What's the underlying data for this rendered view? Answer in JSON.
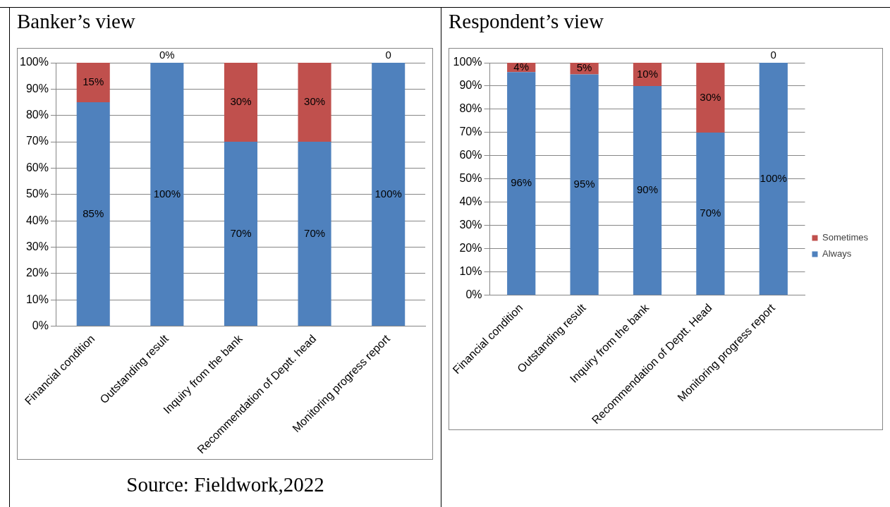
{
  "chart_data": [
    {
      "type": "bar",
      "title": "Banker’s view",
      "categories": [
        "Financial condition",
        "Outstanding result",
        "Inquiry from the bank",
        "Recommendation of Deptt. head",
        "Monitoring progress report"
      ],
      "stacked": true,
      "ylim": [
        0,
        100
      ],
      "yticks": [
        {
          "value": 0,
          "label": "0%"
        },
        {
          "value": 10,
          "label": "10%"
        },
        {
          "value": 20,
          "label": "20%"
        },
        {
          "value": 30,
          "label": "30%"
        },
        {
          "value": 40,
          "label": "40%"
        },
        {
          "value": 50,
          "label": "50%"
        },
        {
          "value": 60,
          "label": "60%"
        },
        {
          "value": 70,
          "label": "70%"
        },
        {
          "value": 80,
          "label": "80%"
        },
        {
          "value": 90,
          "label": "90%"
        },
        {
          "value": 100,
          "label": "100%"
        }
      ],
      "grid": "y",
      "legend": false,
      "annotations": [
        "Source: Fieldwork,2022"
      ],
      "series": [
        {
          "color": "#4f81bd",
          "values": [
            85,
            100,
            70,
            70,
            100
          ],
          "value_labels": [
            "85%",
            "100%",
            "70%",
            "70%",
            "100%"
          ]
        },
        {
          "color": "#c0504d",
          "values": [
            15,
            0,
            30,
            30,
            0
          ],
          "value_labels": [
            "15%",
            "0%",
            "30%",
            "30%",
            "0"
          ]
        }
      ]
    },
    {
      "type": "bar",
      "title": "Respondent’s view",
      "categories": [
        "Financial condition",
        "Outstanding result",
        "Inquiry from the bank",
        "Recommendation of Deptt. Head",
        "Monitoring progress report"
      ],
      "stacked": true,
      "ylim": [
        0,
        100
      ],
      "yticks": [
        {
          "value": 0,
          "label": "0%"
        },
        {
          "value": 10,
          "label": "10%"
        },
        {
          "value": 20,
          "label": "20%"
        },
        {
          "value": 30,
          "label": "30%"
        },
        {
          "value": 40,
          "label": "40%"
        },
        {
          "value": 50,
          "label": "50%"
        },
        {
          "value": 60,
          "label": "60%"
        },
        {
          "value": 70,
          "label": "70%"
        },
        {
          "value": 80,
          "label": "80%"
        },
        {
          "value": 90,
          "label": "90%"
        },
        {
          "value": 100,
          "label": "100%"
        }
      ],
      "grid": "y",
      "legend": "right",
      "series": [
        {
          "name": "Always",
          "color": "#4f81bd",
          "values": [
            96,
            95,
            90,
            70,
            100
          ],
          "value_labels": [
            "96%",
            "95%",
            "90%",
            "70%",
            "100%"
          ]
        },
        {
          "name": "Sometimes",
          "color": "#c0504d",
          "values": [
            4,
            5,
            10,
            30,
            0
          ],
          "value_labels": [
            "4%",
            "5%",
            "10%",
            "30%",
            "0"
          ]
        }
      ]
    }
  ]
}
